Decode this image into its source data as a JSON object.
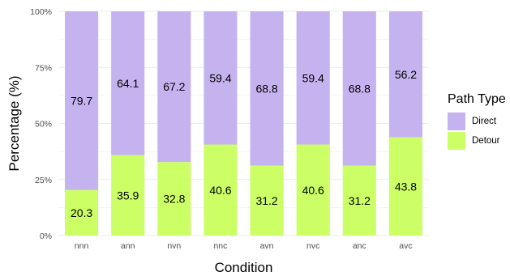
{
  "chart_data": {
    "type": "bar",
    "stacked": true,
    "xlabel": "Condition",
    "ylabel": "Percentage (%)",
    "ylim": [
      0,
      100
    ],
    "y_ticks": [
      0,
      25,
      50,
      75,
      100
    ],
    "y_tick_labels": [
      "0%",
      "25%",
      "50%",
      "75%",
      "100%"
    ],
    "grid": true,
    "legend_position": "right",
    "categories": [
      "nnn",
      "ann",
      "nvn",
      "nnc",
      "avn",
      "nvc",
      "anc",
      "avc"
    ],
    "series": [
      {
        "name": "Detour",
        "color": "#ccff66",
        "values": [
          20.3,
          35.9,
          32.8,
          40.6,
          31.2,
          40.6,
          31.2,
          43.8
        ]
      },
      {
        "name": "Direct",
        "color": "#c5b3f0",
        "values": [
          79.7,
          64.1,
          67.2,
          59.4,
          68.8,
          59.4,
          68.8,
          56.2
        ]
      }
    ],
    "data_labels": {
      "Detour": [
        "20.3",
        "35.9",
        "32.8",
        "40.6",
        "31.2",
        "40.6",
        "31.2",
        "43.8"
      ],
      "Direct": [
        "79.7",
        "64.1",
        "67.2",
        "59.4",
        "68.8",
        "59.4",
        "68.8",
        "56.2"
      ]
    }
  },
  "legend": {
    "title": "Path Type",
    "items": [
      {
        "label": "Direct",
        "color": "#c5b3f0"
      },
      {
        "label": "Detour",
        "color": "#ccff66"
      }
    ]
  },
  "colors": {
    "grid": "#ebebeb",
    "tick_text": "#4d4d4d",
    "axis_title": "#000000"
  }
}
